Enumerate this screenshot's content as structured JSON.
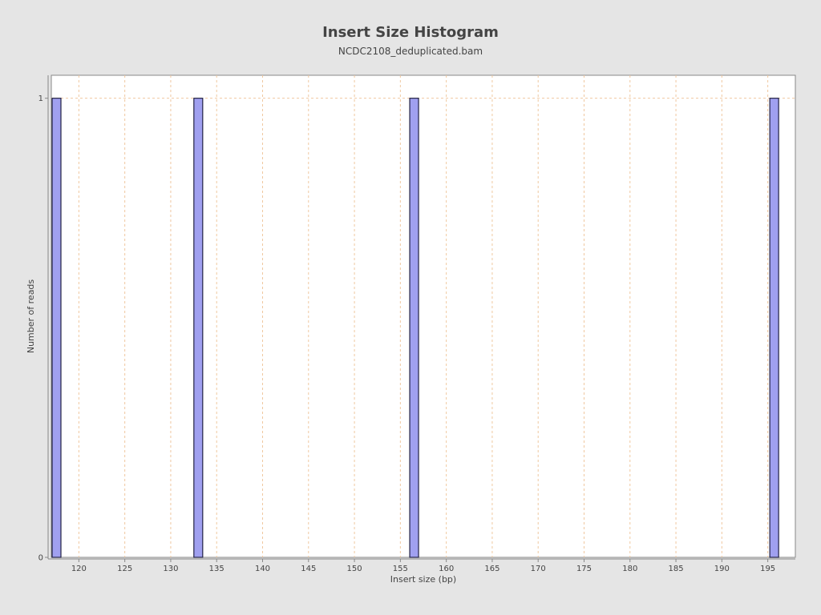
{
  "chart_data": {
    "type": "bar",
    "title": "Insert Size Histogram",
    "subtitle": "NCDC2108_deduplicated.bam",
    "xlabel": "Insert size (bp)",
    "ylabel": "Number of reads",
    "xlim": [
      117,
      198
    ],
    "ylim": [
      0,
      1.05
    ],
    "x_ticks": [
      120,
      125,
      130,
      135,
      140,
      145,
      150,
      155,
      160,
      165,
      170,
      175,
      180,
      185,
      190,
      195
    ],
    "y_ticks": [
      0,
      1
    ],
    "bins": [
      {
        "x": 117,
        "count": 1
      },
      {
        "x": 133,
        "count": 1
      },
      {
        "x": 156.5,
        "count": 1
      },
      {
        "x": 195.7,
        "count": 1
      }
    ],
    "bar_color": "#a0a0f0",
    "bar_edge_color": "#222244",
    "grid": true,
    "grid_color": "#f0c8a0",
    "plot_background": "#ffffff",
    "page_background": "#e5e5e5"
  }
}
